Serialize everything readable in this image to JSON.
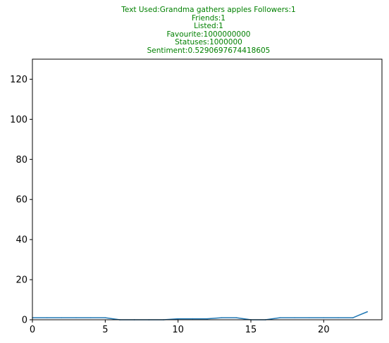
{
  "colors": {
    "title": "#008000",
    "series": "#1f77b4",
    "axis": "#000000"
  },
  "chart_data": {
    "type": "line",
    "title_lines": [
      "Text Used:Grandma gathers apples Followers:1",
      "Friends:1",
      "Listed:1",
      "Favourite:1000000000",
      "Statuses:1000000",
      "Sentiment:0.5290697674418605"
    ],
    "xlabel": "",
    "ylabel": "",
    "xlim": [
      0,
      24
    ],
    "ylim": [
      0,
      130
    ],
    "x_ticks": [
      0,
      5,
      10,
      15,
      20
    ],
    "y_ticks": [
      0,
      20,
      40,
      60,
      80,
      100,
      120
    ],
    "grid": false,
    "legend": "none",
    "series": [
      {
        "x": [
          0,
          1,
          2,
          3,
          4,
          5,
          6,
          7,
          8,
          9,
          10,
          11,
          12,
          13,
          14,
          15,
          16,
          17,
          18,
          19,
          20,
          21,
          22,
          23
        ],
        "values": [
          1,
          1,
          1,
          1,
          1,
          1,
          0,
          0,
          0,
          0,
          0.5,
          0.5,
          0.5,
          1,
          1,
          0,
          0,
          1,
          1,
          1,
          1,
          1,
          1,
          4
        ]
      }
    ]
  }
}
